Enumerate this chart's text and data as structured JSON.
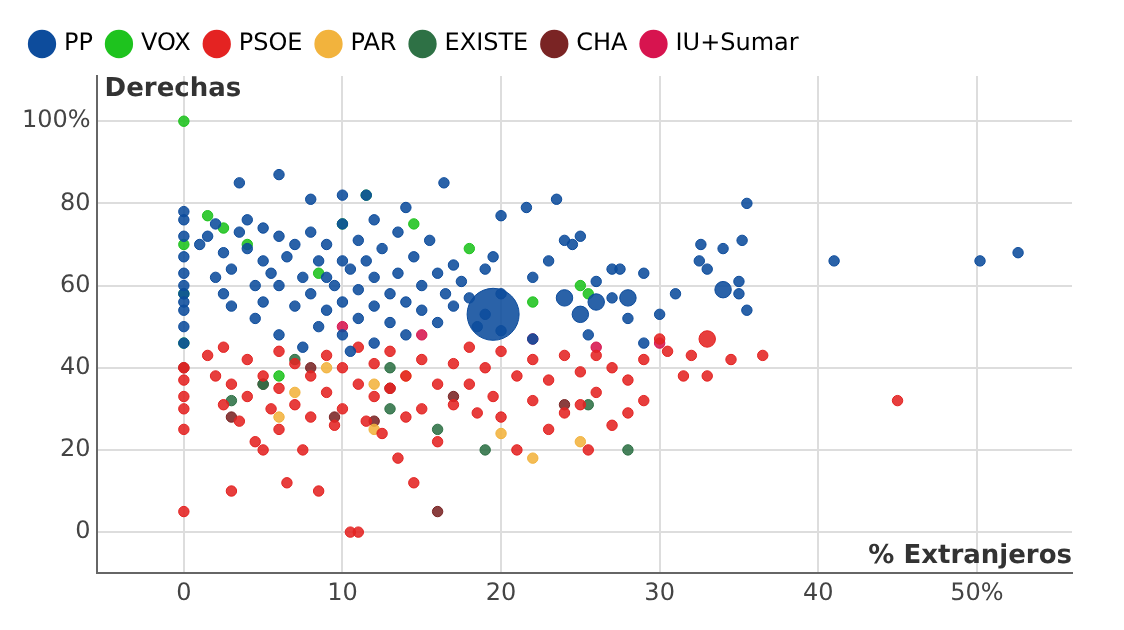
{
  "chart_data": {
    "type": "bubble",
    "ylabel": "Derechas",
    "xlabel": "% Extranjeros",
    "xlim": [
      -5.5,
      56
    ],
    "ylim": [
      -10,
      111
    ],
    "xticks": [
      0,
      10,
      20,
      30,
      40,
      {
        "value": 50,
        "label": "50%"
      }
    ],
    "yticks": [
      0,
      20,
      40,
      60,
      80,
      {
        "value": 100,
        "label": "100%"
      }
    ],
    "grid": true,
    "legend": "top left",
    "marker": "circle",
    "series": [
      {
        "name": "PP",
        "color": "#0d4c9c",
        "x": [
          0,
          0,
          0,
          0,
          0,
          0,
          0,
          0,
          0,
          0,
          0,
          1,
          1.5,
          2,
          2.5,
          2,
          2.5,
          3,
          3,
          3.5,
          3.5,
          4,
          4,
          4.5,
          4.5,
          5,
          5,
          5,
          5.5,
          6,
          6,
          6,
          6,
          6.5,
          7,
          7,
          7.5,
          7.5,
          8,
          8,
          8,
          8.5,
          8.5,
          9,
          9,
          9,
          9.5,
          10,
          10,
          10,
          10,
          10,
          10.5,
          10.5,
          11,
          11,
          11,
          11.5,
          11.5,
          12,
          12,
          12,
          12,
          12.5,
          13,
          13,
          13.5,
          13.5,
          14,
          14,
          14,
          14.5,
          15,
          15,
          15.5,
          16,
          16,
          16.5,
          17,
          17,
          17.5,
          16.4,
          18,
          18.5,
          19,
          19,
          19.5,
          20,
          20,
          19.5,
          21.6,
          22,
          22,
          20,
          23,
          23.5,
          24,
          24,
          24.5,
          25,
          25,
          25.5,
          26,
          26,
          27,
          27,
          27.5,
          28,
          28,
          29,
          29,
          30,
          31,
          32.6,
          32.5,
          33,
          34,
          34,
          35,
          35.2,
          35.5,
          35.5,
          35,
          41,
          50.2,
          52.6
        ],
        "values": [
          78,
          76,
          72,
          67,
          63,
          60,
          58,
          56,
          54,
          50,
          46,
          70,
          72,
          75,
          68,
          62,
          58,
          64,
          55,
          85,
          73,
          76,
          69,
          60,
          52,
          74,
          66,
          56,
          63,
          87,
          72,
          60,
          48,
          67,
          70,
          55,
          62,
          45,
          81,
          73,
          58,
          66,
          50,
          70,
          62,
          54,
          60,
          82,
          75,
          66,
          56,
          48,
          64,
          44,
          71,
          59,
          52,
          82,
          66,
          76,
          62,
          55,
          46,
          69,
          58,
          51,
          73,
          63,
          79,
          56,
          48,
          67,
          60,
          54,
          71,
          63,
          51,
          58,
          65,
          55,
          61,
          85,
          57,
          50,
          64,
          53,
          67,
          58,
          49,
          53,
          79,
          62,
          47,
          77,
          66,
          81,
          71,
          57,
          70,
          72,
          53,
          48,
          61,
          56,
          64,
          57,
          64,
          52,
          57,
          63,
          46,
          53,
          58,
          70,
          66,
          64,
          59,
          69,
          58,
          71,
          80,
          54,
          61,
          66,
          66,
          68
        ],
        "sizes": [
          0.04,
          0.04,
          0.04,
          0.04,
          0.04,
          0.04,
          0.04,
          0.04,
          0.04,
          0.04,
          0.04,
          0.04,
          0.04,
          0.04,
          0.04,
          0.04,
          0.04,
          0.04,
          0.04,
          0.04,
          0.04,
          0.04,
          0.04,
          0.04,
          0.04,
          0.04,
          0.04,
          0.04,
          0.04,
          0.04,
          0.04,
          0.04,
          0.04,
          0.04,
          0.04,
          0.04,
          0.04,
          0.04,
          0.04,
          0.04,
          0.04,
          0.04,
          0.04,
          0.04,
          0.04,
          0.04,
          0.04,
          0.04,
          0.04,
          0.04,
          0.04,
          0.04,
          0.04,
          0.04,
          0.04,
          0.04,
          0.04,
          0.04,
          0.04,
          0.04,
          0.04,
          0.04,
          0.04,
          0.04,
          0.04,
          0.04,
          0.04,
          0.04,
          0.04,
          0.04,
          0.04,
          0.04,
          0.04,
          0.04,
          0.04,
          0.04,
          0.04,
          0.04,
          0.04,
          0.04,
          0.04,
          0.04,
          0.04,
          0.04,
          0.04,
          0.04,
          0.04,
          0.04,
          0.04,
          1,
          0.04,
          0.04,
          0.04,
          0.04,
          0.04,
          0.04,
          0.04,
          0.1,
          0.04,
          0.04,
          0.1,
          0.04,
          0.04,
          0.1,
          0.04,
          0.04,
          0.04,
          0.04,
          0.1,
          0.04,
          0.04,
          0.04,
          0.04,
          0.04,
          0.04,
          0.04,
          0.1,
          0.04,
          0.04,
          0.04,
          0.04,
          0.04,
          0.04,
          0.04,
          0.04,
          0.04
        ]
      },
      {
        "name": "VOX",
        "color": "#1ec31e",
        "x": [
          0,
          0,
          0,
          0,
          1.5,
          2.5,
          4,
          8.5,
          10,
          11.5,
          14.5,
          18,
          22,
          25.5,
          6,
          25
        ],
        "values": [
          100,
          70,
          58,
          46,
          77,
          74,
          70,
          63,
          75,
          82,
          75,
          69,
          56,
          58,
          38,
          60
        ],
        "sizes": [
          0.04,
          0.04,
          0.04,
          0.04,
          0.04,
          0.04,
          0.04,
          0.04,
          0.04,
          0.04,
          0.04,
          0.04,
          0.04,
          0.04,
          0.04,
          0.04
        ]
      },
      {
        "name": "PSOE",
        "color": "#e42322",
        "x": [
          0,
          0,
          0,
          0,
          0,
          0,
          1.5,
          2,
          2.5,
          2.5,
          3,
          3,
          3.5,
          4,
          4,
          4.5,
          5,
          5,
          5.5,
          6,
          6,
          6,
          6.5,
          7,
          7,
          7.5,
          8,
          8,
          8.5,
          9,
          9,
          9.5,
          10,
          10,
          10.5,
          11,
          11,
          11,
          11.5,
          12,
          12,
          12.5,
          13,
          13,
          13.5,
          14,
          14,
          14.5,
          15,
          15,
          16,
          16,
          17,
          17,
          18,
          18,
          18.5,
          19,
          19.5,
          20,
          20,
          21,
          21,
          22,
          22,
          23,
          23,
          24,
          24,
          25,
          25,
          25.5,
          26,
          26,
          27,
          27,
          28,
          28,
          29,
          29,
          30,
          30.5,
          32,
          31.5,
          33,
          33,
          34.5,
          36.5,
          45
        ],
        "values": [
          40,
          37,
          33,
          30,
          25,
          5,
          43,
          38,
          45,
          31,
          36,
          10,
          27,
          42,
          33,
          22,
          20,
          38,
          30,
          44,
          35,
          25,
          12,
          41,
          31,
          20,
          38,
          28,
          10,
          43,
          34,
          26,
          40,
          30,
          0,
          0,
          45,
          36,
          27,
          41,
          33,
          24,
          44,
          35,
          18,
          38,
          28,
          12,
          42,
          30,
          36,
          22,
          41,
          31,
          45,
          36,
          29,
          40,
          33,
          44,
          28,
          38,
          20,
          42,
          32,
          37,
          25,
          43,
          29,
          39,
          31,
          20,
          43,
          34,
          40,
          26,
          37,
          29,
          42,
          32,
          47,
          44,
          43,
          38,
          38,
          47,
          42,
          43,
          32
        ],
        "sizes": [
          0.04,
          0.04,
          0.04,
          0.04,
          0.04,
          0.04,
          0.04,
          0.04,
          0.04,
          0.04,
          0.04,
          0.04,
          0.04,
          0.04,
          0.04,
          0.04,
          0.04,
          0.04,
          0.04,
          0.04,
          0.04,
          0.04,
          0.04,
          0.04,
          0.04,
          0.04,
          0.04,
          0.04,
          0.04,
          0.04,
          0.04,
          0.04,
          0.04,
          0.04,
          0.04,
          0.04,
          0.04,
          0.04,
          0.04,
          0.04,
          0.04,
          0.04,
          0.04,
          0.04,
          0.04,
          0.04,
          0.04,
          0.04,
          0.04,
          0.04,
          0.04,
          0.04,
          0.04,
          0.04,
          0.04,
          0.04,
          0.04,
          0.04,
          0.04,
          0.04,
          0.04,
          0.04,
          0.04,
          0.04,
          0.04,
          0.04,
          0.04,
          0.04,
          0.04,
          0.04,
          0.04,
          0.04,
          0.04,
          0.04,
          0.04,
          0.04,
          0.04,
          0.04,
          0.04,
          0.04,
          0.04,
          0.04,
          0.04,
          0.04,
          0.04,
          0.1,
          0.04,
          0.04,
          0.04
        ]
      },
      {
        "name": "PAR",
        "color": "#f2b33d",
        "x": [
          7,
          9,
          12,
          14,
          20,
          22,
          25,
          6,
          12
        ],
        "values": [
          34,
          40,
          36,
          38,
          24,
          18,
          22,
          28,
          25
        ],
        "sizes": [
          0.04,
          0.04,
          0.04,
          0.04,
          0.04,
          0.04,
          0.04,
          0.04,
          0.04
        ]
      },
      {
        "name": "EXISTE",
        "color": "#2e7145",
        "x": [
          3,
          5,
          7,
          13,
          16,
          19,
          25.5,
          28,
          13
        ],
        "values": [
          32,
          36,
          42,
          30,
          25,
          20,
          31,
          20,
          40
        ],
        "sizes": [
          0.04,
          0.04,
          0.04,
          0.04,
          0.04,
          0.04,
          0.04,
          0.04,
          0.04
        ]
      },
      {
        "name": "CHA",
        "color": "#7a2424",
        "x": [
          0,
          3,
          5,
          9.5,
          12,
          13,
          16,
          17,
          24,
          8
        ],
        "values": [
          40,
          28,
          36,
          28,
          27,
          35,
          5,
          33,
          31,
          40
        ],
        "sizes": [
          0.04,
          0.04,
          0.04,
          0.04,
          0.04,
          0.04,
          0.04,
          0.04,
          0.04,
          0.04
        ]
      },
      {
        "name": "IU+Sumar",
        "color": "#d7144f",
        "x": [
          10,
          15,
          22,
          26,
          30
        ],
        "values": [
          50,
          48,
          47,
          45,
          46
        ],
        "sizes": [
          0.04,
          0.04,
          0.04,
          0.04,
          0.04
        ]
      }
    ]
  }
}
